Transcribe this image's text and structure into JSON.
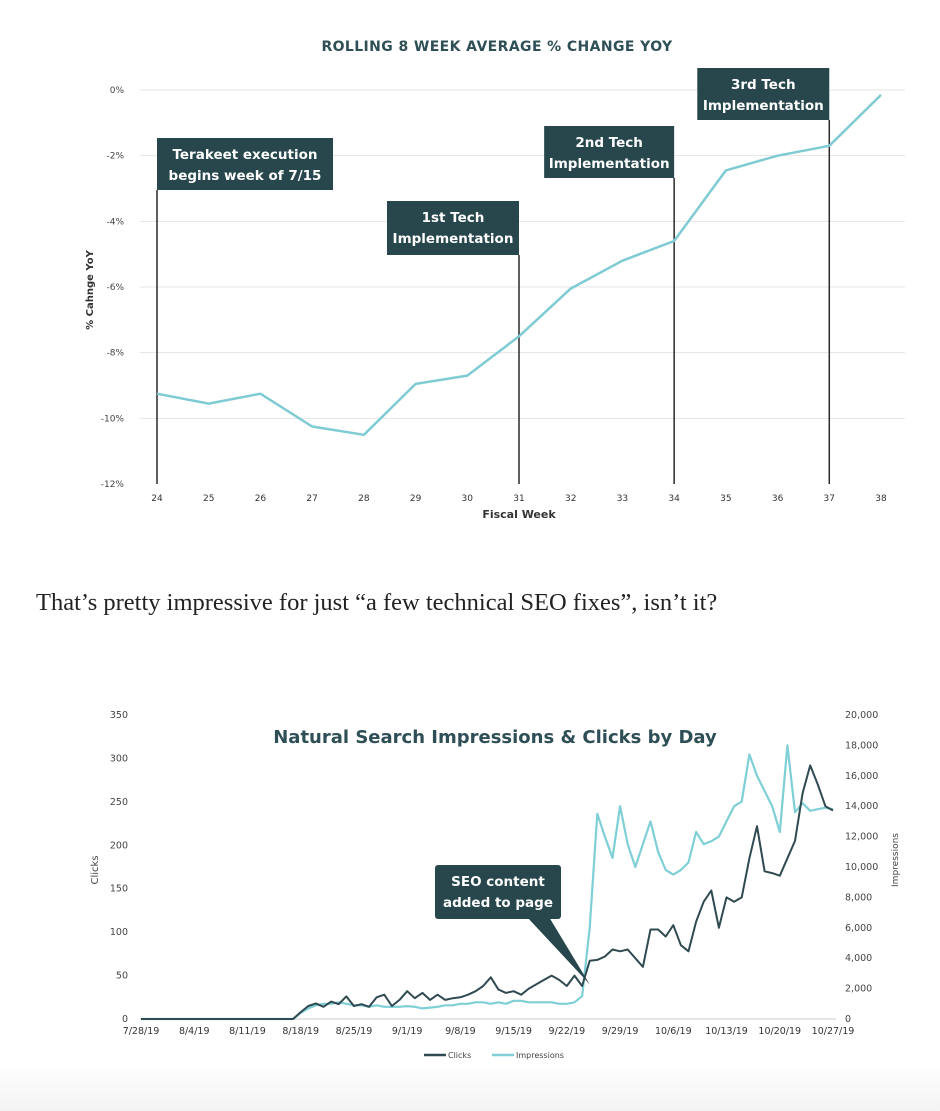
{
  "chart_data": [
    {
      "type": "line",
      "title": "ROLLING 8 WEEK AVERAGE % CHANGE YOY",
      "xlabel": "Fiscal Week",
      "ylabel": "% Cahnge YoY",
      "x": [
        24,
        25,
        26,
        27,
        28,
        29,
        30,
        31,
        32,
        33,
        34,
        35,
        36,
        37,
        38
      ],
      "x_tick_labels": [
        "24",
        "25",
        "26",
        "27",
        "28",
        "29",
        "30",
        "31",
        "32",
        "33",
        "34",
        "35",
        "36",
        "37",
        "38"
      ],
      "ylim": [
        -12,
        0
      ],
      "y_tick_values": [
        0,
        -2,
        -4,
        -6,
        -8,
        -10,
        -12
      ],
      "y_tick_labels": [
        "0%",
        "-2%",
        "-4%",
        "-6%",
        "-8%",
        "-10%",
        "-12%"
      ],
      "grid": true,
      "series": [
        {
          "values": [
            -9.25,
            -9.55,
            -9.25,
            -10.25,
            -10.5,
            -8.95,
            -8.7,
            -7.5,
            -6.05,
            -5.2,
            -4.6,
            -2.45,
            -2.0,
            -1.7,
            -0.15
          ],
          "color": "#7ecbd3"
        }
      ],
      "annotations": [
        {
          "x": 24,
          "lines": [
            "Terakeet execution",
            "begins week of 7/15"
          ]
        },
        {
          "x": 31,
          "lines": [
            "1st Tech",
            "Implementation"
          ]
        },
        {
          "x": 34,
          "lines": [
            "2nd Tech",
            "Implementation"
          ]
        },
        {
          "x": 37,
          "lines": [
            "3rd Tech",
            "Implementation"
          ]
        }
      ],
      "annotation_color": "#27474d"
    },
    {
      "type": "line",
      "title": "Natural Search Impressions & Clicks by Day",
      "ylabel": "Clicks",
      "y2label": "Impressions",
      "ylim": [
        0,
        350
      ],
      "y2lim": [
        0,
        20000
      ],
      "y_tick_values": [
        0,
        50,
        100,
        150,
        200,
        250,
        300,
        350
      ],
      "y_tick_labels": [
        "0",
        "50",
        "100",
        "150",
        "200",
        "250",
        "300",
        "350"
      ],
      "y2_tick_values": [
        0,
        2000,
        4000,
        6000,
        8000,
        10000,
        12000,
        14000,
        16000,
        18000,
        20000
      ],
      "y2_tick_labels": [
        "0",
        "2,000",
        "4,000",
        "6,000",
        "8,000",
        "10,000",
        "12,000",
        "14,000",
        "16,000",
        "18,000",
        "20,000"
      ],
      "x_range": [
        0,
        91
      ],
      "x_tick_positions": [
        0,
        7,
        14,
        21,
        28,
        35,
        42,
        49,
        56,
        63,
        70,
        77,
        84,
        91
      ],
      "x_tick_labels": [
        "7/28/19",
        "8/4/19",
        "8/11/19",
        "8/18/19",
        "8/25/19",
        "9/1/19",
        "9/8/19",
        "9/15/19",
        "9/22/19",
        "9/29/19",
        "10/6/19",
        "10/13/19",
        "10/20/19",
        "10/27/19"
      ],
      "legend": "bottom",
      "series": [
        {
          "name": "Clicks",
          "axis": "left",
          "color": "#2f4a50",
          "x": [
            0,
            20,
            21,
            22,
            23,
            24,
            25,
            26,
            27,
            28,
            29,
            30,
            31,
            32,
            33,
            34,
            35,
            36,
            37,
            38,
            39,
            40,
            41,
            42,
            43,
            44,
            45,
            46,
            47,
            48,
            49,
            50,
            51,
            52,
            53,
            54,
            55,
            56,
            57,
            58,
            59,
            60,
            61,
            62,
            63,
            64,
            65,
            66,
            67,
            68,
            69,
            70,
            71,
            72,
            73,
            74,
            75,
            76,
            77,
            78,
            79,
            80,
            81,
            82,
            83,
            84,
            85,
            86,
            87,
            88,
            89,
            90,
            91
          ],
          "values": [
            0,
            0,
            8,
            15,
            18,
            14,
            20,
            17,
            26,
            15,
            17,
            14,
            25,
            28,
            15,
            22,
            32,
            24,
            30,
            22,
            28,
            22,
            24,
            25,
            28,
            32,
            38,
            48,
            34,
            30,
            32,
            28,
            35,
            40,
            45,
            50,
            45,
            38,
            50,
            38,
            67,
            68,
            72,
            80,
            78,
            80,
            70,
            60,
            103,
            103,
            95,
            108,
            85,
            78,
            112,
            135,
            148,
            105,
            140,
            135,
            140,
            185,
            222,
            170,
            168,
            165,
            185,
            205,
            260,
            292,
            270,
            245,
            240
          ]
        },
        {
          "name": "Impressions",
          "axis": "right",
          "color": "#7ecfd6",
          "x": [
            0,
            20,
            21,
            22,
            23,
            24,
            25,
            26,
            27,
            28,
            29,
            30,
            31,
            32,
            33,
            34,
            35,
            36,
            37,
            38,
            39,
            40,
            41,
            42,
            43,
            44,
            45,
            46,
            47,
            48,
            49,
            50,
            51,
            52,
            53,
            54,
            55,
            56,
            57,
            58,
            59,
            60,
            61,
            62,
            63,
            64,
            65,
            66,
            67,
            68,
            69,
            70,
            71,
            72,
            73,
            74,
            75,
            76,
            77,
            78,
            79,
            80,
            81,
            82,
            83,
            84,
            85,
            86,
            87,
            88,
            89,
            90,
            91
          ],
          "values": [
            0,
            0,
            400,
            700,
            900,
            1000,
            1000,
            1100,
            1000,
            900,
            900,
            800,
            900,
            800,
            800,
            800,
            850,
            800,
            700,
            750,
            800,
            900,
            900,
            1000,
            1000,
            1100,
            1100,
            1000,
            1100,
            1000,
            1200,
            1200,
            1100,
            1100,
            1100,
            1100,
            1000,
            1000,
            1100,
            1500,
            6000,
            13500,
            12000,
            10600,
            14000,
            11500,
            10000,
            11500,
            13000,
            11000,
            9800,
            9500,
            9800,
            10300,
            12300,
            11500,
            11700,
            12000,
            13000,
            14000,
            14300,
            17400,
            16000,
            15000,
            14000,
            12300,
            18000,
            13600,
            14200,
            13700,
            13800,
            13900,
            13800
          ]
        }
      ],
      "annotation": {
        "x": 59,
        "y": 40,
        "lines": [
          "SEO content",
          "added to page"
        ]
      },
      "annotation_color": "#27474d"
    }
  ],
  "caption": "That’s pretty impressive for just “a few technical SEO fixes”, isn’t it?"
}
